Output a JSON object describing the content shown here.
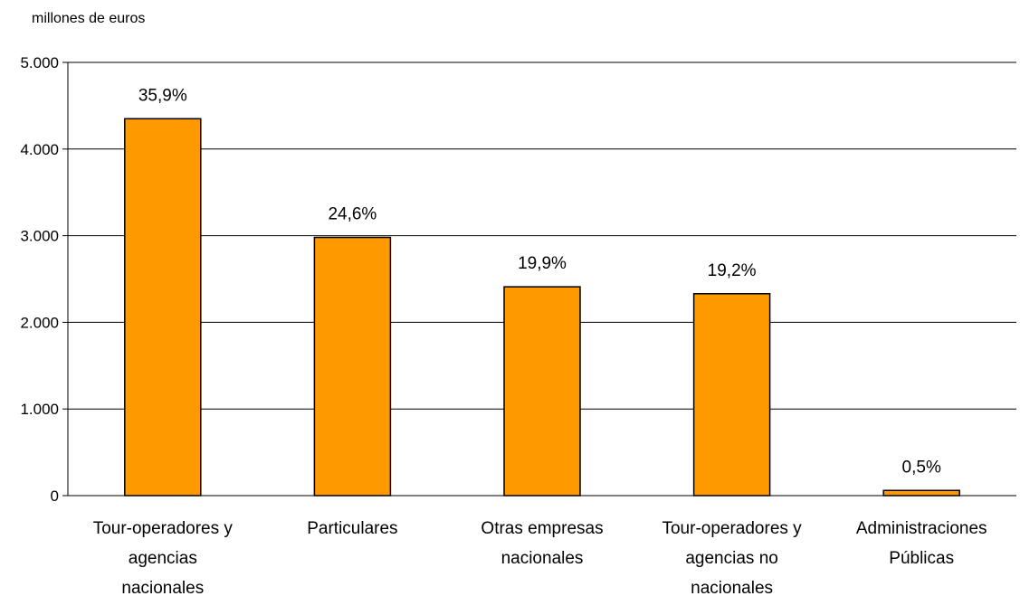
{
  "chart_data": {
    "type": "bar",
    "ylabel": "millones de euros",
    "categories": [
      [
        "Tour-operadores y",
        "agencias",
        "nacionales"
      ],
      [
        "Particulares"
      ],
      [
        "Otras empresas",
        "nacionales"
      ],
      [
        "Tour-operadores y",
        "agencias no",
        "nacionales"
      ],
      [
        "Administraciones",
        "Públicas"
      ]
    ],
    "values": [
      4350,
      2980,
      2410,
      2330,
      60
    ],
    "data_labels": [
      "35,9%",
      "24,6%",
      "19,9%",
      "19,2%",
      "0,5%"
    ],
    "ylim": [
      0,
      5000
    ],
    "yticks": [
      0,
      1000,
      2000,
      3000,
      4000,
      5000
    ],
    "ytick_labels": [
      "0",
      "1.000",
      "2.000",
      "3.000",
      "4.000",
      "5.000"
    ],
    "grid": true,
    "colors": {
      "bar_fill": "#ff9900",
      "bar_stroke": "#000000",
      "grid": "#000000"
    }
  }
}
